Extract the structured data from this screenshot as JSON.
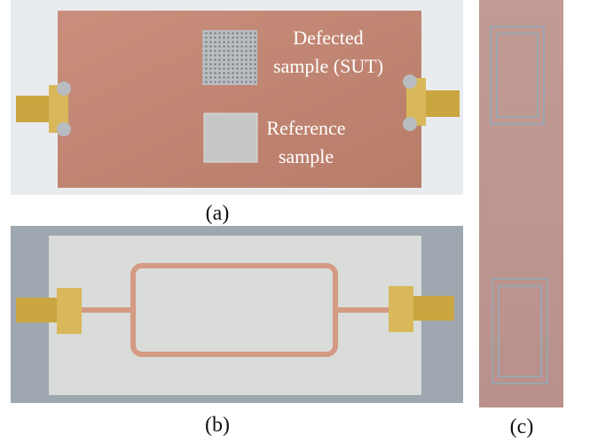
{
  "panels": [
    {
      "label": "(a)",
      "annotations": [
        "Defected",
        "sample (SUT)",
        "Reference",
        "sample"
      ]
    },
    {
      "label": "(b)"
    },
    {
      "label": "(c)"
    }
  ]
}
